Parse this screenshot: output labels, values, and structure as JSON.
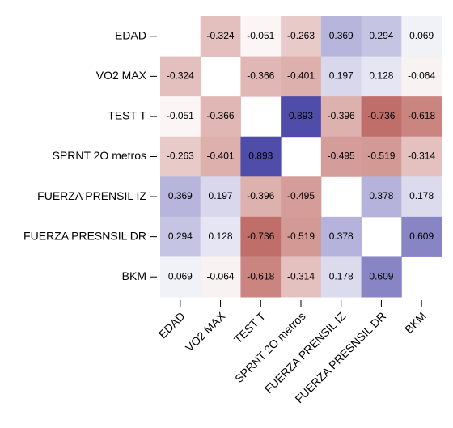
{
  "chart_data": {
    "type": "heatmap",
    "categories": [
      "EDAD",
      "VO2 MAX",
      "TEST T",
      "SPRNT 2O metros",
      "FUERZA PRENSIL IZ",
      "FUERZA PRESNSIL DR",
      "BKM"
    ],
    "values": [
      [
        null,
        -0.324,
        -0.051,
        -0.263,
        0.369,
        0.294,
        0.069
      ],
      [
        -0.324,
        null,
        -0.366,
        -0.401,
        0.197,
        0.128,
        -0.064
      ],
      [
        -0.051,
        -0.366,
        null,
        0.893,
        -0.396,
        -0.736,
        -0.618
      ],
      [
        -0.263,
        -0.401,
        0.893,
        null,
        -0.495,
        -0.519,
        -0.314
      ],
      [
        0.369,
        0.197,
        -0.396,
        -0.495,
        null,
        0.378,
        0.178
      ],
      [
        0.294,
        0.128,
        -0.736,
        -0.519,
        0.378,
        null,
        0.609
      ],
      [
        0.069,
        -0.064,
        -0.618,
        -0.314,
        0.178,
        0.609,
        null
      ]
    ],
    "zlim": [
      -1,
      1
    ],
    "negative_color": "#a93a33",
    "positive_color": "#3b36a0"
  }
}
